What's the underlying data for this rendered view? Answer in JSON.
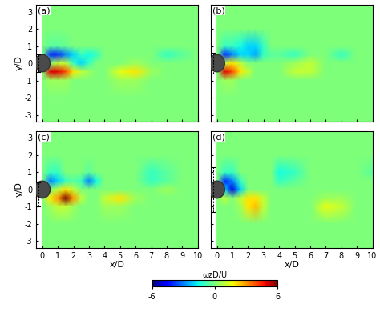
{
  "chart_data": [
    {
      "type": "heatmap",
      "title": "(a)",
      "y_label": "y/D",
      "tick_labels": "y",
      "xlim": [
        -0.4,
        10
      ],
      "ylim": [
        -3.4,
        3.4
      ],
      "xticks": [
        0,
        1,
        2,
        3,
        4,
        5,
        6,
        7,
        8,
        9,
        10
      ],
      "yticks": [
        -3,
        -2,
        -1,
        0,
        1,
        2,
        3
      ],
      "cylinder": {
        "x": 0,
        "y": 0,
        "diameter": 1
      },
      "oscillation_range": [
        -0.5,
        0.5
      ],
      "x": [
        0,
        0.5,
        1,
        1.5,
        2,
        2.5,
        3,
        3.5,
        4,
        5,
        6,
        7,
        8,
        9,
        10
      ],
      "y": [
        3.4,
        2,
        1,
        0.5,
        0,
        -0.5,
        -1,
        -2,
        -3.4
      ],
      "cells": [
        [
          0,
          0,
          0,
          0,
          0,
          0,
          0,
          0,
          0,
          0,
          0,
          0,
          0,
          0,
          0
        ],
        [
          0,
          0,
          0,
          0,
          0,
          0,
          0,
          0,
          0,
          0,
          0,
          0,
          0,
          0,
          0
        ],
        [
          0,
          -0.5,
          -0.5,
          -0.3,
          0,
          0,
          0,
          0,
          0,
          0,
          0,
          0,
          0,
          0,
          0
        ],
        [
          0,
          -4,
          -4,
          -3,
          -2,
          -1,
          -1.5,
          -1,
          0,
          0,
          0,
          0,
          -1,
          -0.5,
          0
        ],
        [
          0,
          0,
          1,
          1,
          -1,
          -2,
          -1,
          0,
          0,
          0,
          0.5,
          0,
          0,
          0,
          0
        ],
        [
          0,
          5,
          5,
          4,
          2,
          1,
          0.5,
          0,
          0,
          1.5,
          2,
          0.5,
          0,
          0,
          0
        ],
        [
          0,
          0.5,
          0.5,
          0.5,
          0,
          0,
          0,
          0,
          0,
          0.5,
          0.5,
          0,
          0,
          0,
          0
        ],
        [
          0,
          0,
          0,
          0,
          0,
          0,
          0,
          0,
          0,
          0,
          0,
          0,
          0,
          0,
          0
        ],
        [
          0,
          0,
          0,
          0,
          0,
          0,
          0,
          0,
          0,
          0,
          0,
          0,
          0,
          0,
          0
        ]
      ]
    },
    {
      "type": "heatmap",
      "title": "(b)",
      "tick_labels": false,
      "xlim": [
        -0.4,
        10
      ],
      "ylim": [
        -3.4,
        3.4
      ],
      "xticks": [
        0,
        1,
        2,
        3,
        4,
        5,
        6,
        7,
        8,
        9,
        10
      ],
      "yticks": [
        -3,
        -2,
        -1,
        0,
        1,
        2,
        3
      ],
      "cylinder": {
        "x": 0,
        "y": 0,
        "diameter": 1
      },
      "oscillation_range": [
        -0.6,
        0.6
      ],
      "x": [
        0,
        0.5,
        1,
        1.5,
        2,
        2.5,
        3,
        3.5,
        4,
        5,
        6,
        7,
        8,
        9,
        10
      ],
      "y": [
        3.4,
        2,
        1,
        0.5,
        0,
        -0.5,
        -1,
        -2,
        -3.4
      ],
      "cells": [
        [
          0,
          0,
          0,
          0,
          0,
          0,
          0,
          0,
          0,
          0,
          0,
          0,
          0,
          0,
          0
        ],
        [
          0,
          0,
          0,
          0,
          0,
          0,
          0,
          0,
          0,
          0,
          0,
          0,
          0,
          0,
          0
        ],
        [
          0,
          -1,
          -1,
          -1.5,
          -2,
          -2,
          -1,
          0,
          0,
          0,
          0,
          0,
          0,
          0,
          0
        ],
        [
          0,
          -4,
          -3,
          -2,
          -2,
          -2.5,
          -1,
          -0.5,
          -0.5,
          -1,
          0,
          0,
          -1,
          0,
          0
        ],
        [
          0,
          1,
          2,
          1,
          0,
          0,
          0,
          0,
          0,
          0.5,
          1,
          0,
          0,
          0,
          0
        ],
        [
          0,
          5,
          4,
          2,
          1,
          0,
          0,
          0,
          0,
          1,
          1,
          0,
          0,
          0,
          0
        ],
        [
          0,
          0.5,
          0.5,
          0,
          0,
          0,
          0,
          0,
          0,
          0,
          0,
          0,
          0,
          0,
          0
        ],
        [
          0,
          0,
          0,
          0,
          0,
          0,
          0,
          0,
          0,
          0,
          0,
          0,
          0,
          0,
          0
        ],
        [
          0,
          0,
          0,
          0,
          0,
          0,
          0,
          0,
          0,
          0,
          0,
          0,
          0,
          0,
          0
        ]
      ]
    },
    {
      "type": "heatmap",
      "title": "(c)",
      "x_label": "x/D",
      "y_label": "y/D",
      "tick_labels": true,
      "xlim": [
        -0.4,
        10
      ],
      "ylim": [
        -3.4,
        3.4
      ],
      "xticks": [
        0,
        1,
        2,
        3,
        4,
        5,
        6,
        7,
        8,
        9,
        10
      ],
      "yticks": [
        -3,
        -2,
        -1,
        0,
        1,
        2,
        3
      ],
      "cylinder": {
        "x": 0,
        "y": 0,
        "diameter": 1
      },
      "oscillation_range": [
        -1,
        0.4
      ],
      "x": [
        0,
        0.5,
        1,
        1.5,
        2,
        2.5,
        3,
        3.5,
        4,
        5,
        6,
        7,
        8,
        9,
        10
      ],
      "y": [
        3.4,
        2,
        1,
        0.5,
        0,
        -0.5,
        -1,
        -2,
        -3.4
      ],
      "cells": [
        [
          0,
          0,
          0,
          0,
          0,
          0,
          0,
          0,
          0,
          0,
          0,
          0,
          0,
          0,
          0
        ],
        [
          0,
          0,
          0,
          0,
          0,
          0,
          0,
          0,
          0,
          0,
          0,
          0,
          0,
          0,
          0
        ],
        [
          0,
          -1,
          -1,
          0,
          0,
          0,
          -0.5,
          0,
          0,
          0,
          0,
          -1,
          -0.5,
          0,
          0
        ],
        [
          0,
          -3,
          -2,
          -1,
          -0.5,
          -1,
          -3,
          -1.5,
          0,
          0,
          0,
          -1,
          -0.5,
          0,
          0
        ],
        [
          0,
          0,
          1,
          2,
          1,
          0,
          0,
          0,
          0,
          0,
          0,
          0,
          0.5,
          0,
          0
        ],
        [
          0,
          2,
          3,
          6,
          3,
          1,
          0,
          0,
          1,
          2,
          0.5,
          0,
          0,
          0,
          0
        ],
        [
          0,
          0.5,
          1,
          1,
          0.5,
          0,
          0,
          0,
          0.5,
          0.5,
          0,
          0,
          0,
          0,
          0
        ],
        [
          0,
          0,
          0,
          0,
          0,
          0,
          0,
          0,
          0,
          0,
          0,
          0,
          0,
          0,
          0
        ],
        [
          0,
          0,
          0,
          0,
          0,
          0,
          0,
          0,
          0,
          0,
          0,
          0,
          0,
          0,
          0
        ]
      ]
    },
    {
      "type": "heatmap",
      "title": "(d)",
      "x_label": "x/D",
      "tick_labels": "x",
      "xlim": [
        -0.4,
        10
      ],
      "ylim": [
        -3.4,
        3.4
      ],
      "xticks": [
        0,
        1,
        2,
        3,
        4,
        5,
        6,
        7,
        8,
        9,
        10
      ],
      "yticks": [
        -3,
        -2,
        -1,
        0,
        1,
        2,
        3
      ],
      "cylinder": {
        "x": 0,
        "y": 0,
        "diameter": 1
      },
      "oscillation_range": [
        -1.3,
        1.3
      ],
      "x": [
        0,
        0.5,
        1,
        1.5,
        2,
        2.5,
        3,
        3.5,
        4,
        5,
        6,
        7,
        8,
        9,
        10
      ],
      "y": [
        3.4,
        2,
        1,
        0.5,
        0,
        -0.5,
        -1,
        -2,
        -3.4
      ],
      "cells": [
        [
          0,
          0,
          0,
          0,
          0,
          0,
          0,
          0,
          0,
          0,
          0,
          0,
          0,
          0,
          0
        ],
        [
          0,
          0,
          0,
          0,
          0,
          0,
          0,
          0,
          0,
          0,
          0,
          0,
          0,
          0,
          0
        ],
        [
          0,
          -1,
          -1,
          0,
          0,
          0,
          0,
          0,
          -1.5,
          -1,
          0,
          0,
          0,
          0,
          -0.5
        ],
        [
          0,
          -4,
          -3,
          -1,
          0,
          0,
          0,
          0,
          -1,
          -0.5,
          0,
          0,
          0,
          0,
          0
        ],
        [
          0,
          -2,
          -5,
          -2,
          0,
          0,
          0,
          0,
          0,
          0,
          0,
          0,
          0,
          0,
          0
        ],
        [
          0,
          1,
          0,
          1,
          2,
          2,
          1,
          0,
          0,
          0,
          0,
          0.5,
          0.5,
          0,
          0
        ],
        [
          0,
          0,
          0,
          0.5,
          2,
          2.5,
          1,
          0,
          0,
          0,
          0,
          1.5,
          1,
          0,
          0
        ],
        [
          0,
          0,
          0,
          0,
          0,
          0,
          0,
          0,
          0,
          0,
          0,
          0,
          0,
          0,
          0
        ],
        [
          0,
          0,
          0,
          0,
          0,
          0,
          0,
          0,
          0,
          0,
          0,
          0,
          0,
          0,
          0
        ]
      ]
    }
  ],
  "colorbar": {
    "label": "ωzD/U",
    "range": [
      -6,
      6
    ],
    "ticks": [
      -6,
      0,
      6
    ]
  }
}
